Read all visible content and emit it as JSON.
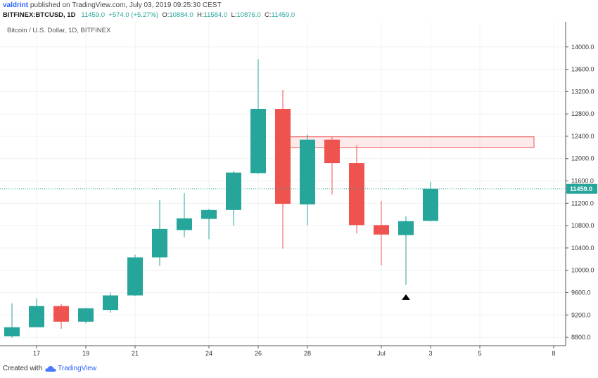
{
  "header": {
    "user": "valdrint",
    "published_text": "published on TradingView.com, July 03, 2019 09:25:30 CEST"
  },
  "ohlc_bar": {
    "symbol": "BITFINEX:BTCUSD, 1D",
    "close": "11459.0",
    "change": "+574.0 (+5.27%)",
    "o_label": "O:",
    "o": "10884.0",
    "h_label": "H:",
    "h": "11584.0",
    "l_label": "L:",
    "l": "10876.0",
    "c_label": "C:",
    "c": "11459.0"
  },
  "footer": {
    "created_with": "Created with",
    "brand": "TradingView"
  },
  "colors": {
    "up": "#26a69a",
    "down": "#ef5350",
    "grid": "#eef0f3",
    "price_line": "#26a69a"
  },
  "chart_data": {
    "type": "candlestick",
    "title": "Bitcoin / U.S. Dollar, 1D, BITFINEX",
    "x_ticks": [
      "17",
      "19",
      "21",
      "24",
      "26",
      "28",
      "Jul",
      "3",
      "5",
      "8"
    ],
    "x_tick_index": [
      1,
      3,
      5,
      8,
      10,
      12,
      15,
      17,
      19,
      22
    ],
    "y_ticks": [
      8800,
      9200,
      9600,
      10000,
      10400,
      10800,
      11200,
      11600,
      12000,
      12400,
      12800,
      13200,
      13600,
      14000
    ],
    "ylim": [
      8650,
      14450
    ],
    "y_tick_labels": [
      "8800.0",
      "9200.0",
      "9600.0",
      "10000.0",
      "10400.0",
      "10800.0",
      "11200.0",
      "11600.0",
      "12000.0",
      "12400.0",
      "12800.0",
      "13200.0",
      "13600.0",
      "14000.0"
    ],
    "last_price": 11459.0,
    "last_price_label": "11459.0",
    "candles": [
      {
        "open": 8820,
        "high": 9410,
        "low": 8790,
        "close": 8980
      },
      {
        "open": 8980,
        "high": 9500,
        "low": 8980,
        "close": 9360
      },
      {
        "open": 9360,
        "high": 9400,
        "low": 8950,
        "close": 9080
      },
      {
        "open": 9080,
        "high": 9330,
        "low": 9050,
        "close": 9320
      },
      {
        "open": 9290,
        "high": 9600,
        "low": 9240,
        "close": 9550
      },
      {
        "open": 9550,
        "high": 10280,
        "low": 9540,
        "close": 10230
      },
      {
        "open": 10230,
        "high": 11260,
        "low": 10080,
        "close": 10740
      },
      {
        "open": 10720,
        "high": 11380,
        "low": 10590,
        "close": 10930
      },
      {
        "open": 10920,
        "high": 11100,
        "low": 10560,
        "close": 11080
      },
      {
        "open": 11080,
        "high": 11780,
        "low": 10800,
        "close": 11750
      },
      {
        "open": 11740,
        "high": 13780,
        "low": 11730,
        "close": 12890
      },
      {
        "open": 12890,
        "high": 13230,
        "low": 10390,
        "close": 11190
      },
      {
        "open": 11180,
        "high": 12430,
        "low": 10810,
        "close": 12340
      },
      {
        "open": 12340,
        "high": 12390,
        "low": 11360,
        "close": 11920
      },
      {
        "open": 11920,
        "high": 12240,
        "low": 10660,
        "close": 10810
      },
      {
        "open": 10810,
        "high": 11240,
        "low": 10090,
        "close": 10640
      },
      {
        "open": 10630,
        "high": 10970,
        "low": 9740,
        "close": 10880
      },
      {
        "open": 10884,
        "high": 11584,
        "low": 10876,
        "close": 11459
      }
    ],
    "resistance_zone": {
      "y_low": 12200,
      "y_high": 12390,
      "x_start_index": 11,
      "x_end_index": 21
    },
    "marker": {
      "index": 16,
      "price": 9520,
      "shape": "triangle-up"
    }
  }
}
